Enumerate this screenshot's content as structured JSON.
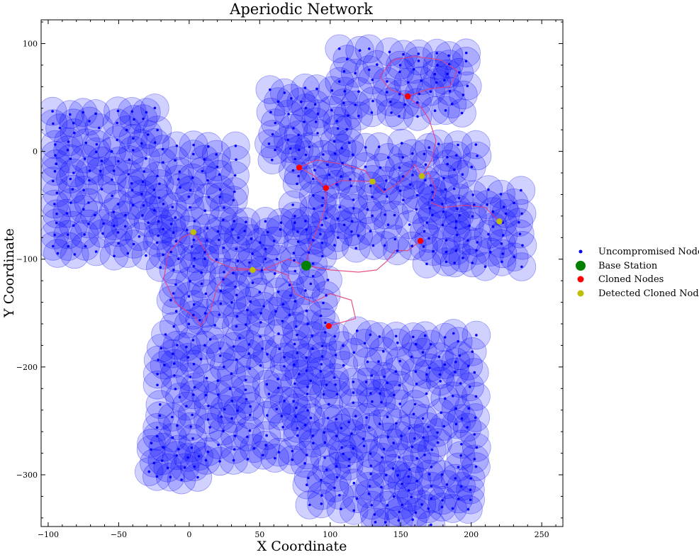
{
  "chart_data": {
    "type": "scatter",
    "title": "Aperiodic Network",
    "xlabel": "X Coordinate",
    "ylabel": "Y Coordinate",
    "xlim": [
      -105,
      265
    ],
    "ylim": [
      -348,
      122
    ],
    "xticks": [
      -100,
      -50,
      0,
      50,
      100,
      150,
      200,
      250
    ],
    "yticks": [
      100,
      0,
      -100,
      -200,
      -300
    ],
    "xtick_labels": [
      "−100",
      "−50",
      "0",
      "50",
      "100",
      "150",
      "200",
      "250"
    ],
    "ytick_labels": [
      "100",
      "0",
      "−100",
      "−200",
      "−300"
    ],
    "grid": false,
    "legend_position": "right",
    "coverage_radius": 10,
    "colors": {
      "uncompromised": "#0000ff",
      "coverage_fill": "#0000ff",
      "base_station": "#008000",
      "cloned": "#ff0000",
      "detected": "#bfbf00",
      "path": "#e0407a"
    },
    "series": [
      {
        "name": "Uncompromised Nodes",
        "marker": "dot"
      },
      {
        "name": "Base Station",
        "marker": "large-dot",
        "points": [
          [
            83,
            -106
          ]
        ]
      },
      {
        "name": "Cloned Nodes",
        "marker": "dot",
        "points": [
          [
            78,
            -15
          ],
          [
            97,
            -34
          ],
          [
            155,
            51
          ],
          [
            164,
            -83
          ],
          [
            99,
            -162
          ]
        ]
      },
      {
        "name": "Detected Cloned Nodes",
        "marker": "dot",
        "points": [
          [
            3,
            -75
          ],
          [
            45,
            -110
          ],
          [
            130,
            -28
          ],
          [
            165,
            -23
          ],
          [
            220,
            -65
          ]
        ]
      }
    ],
    "attack_paths": [
      [
        [
          83,
          -106
        ],
        [
          70,
          -100
        ],
        [
          52,
          -110
        ],
        [
          30,
          -108
        ],
        [
          15,
          -100
        ],
        [
          8,
          -85
        ],
        [
          3,
          -75
        ],
        [
          -5,
          -80
        ],
        [
          -15,
          -95
        ],
        [
          -18,
          -118
        ],
        [
          -10,
          -140
        ],
        [
          5,
          -155
        ],
        [
          8,
          -162
        ],
        [
          15,
          -148
        ],
        [
          20,
          -125
        ],
        [
          30,
          -110
        ],
        [
          45,
          -110
        ],
        [
          60,
          -110
        ],
        [
          70,
          -115
        ],
        [
          75,
          -132
        ],
        [
          88,
          -140
        ],
        [
          100,
          -132
        ],
        [
          115,
          -138
        ],
        [
          118,
          -155
        ],
        [
          99,
          -162
        ]
      ],
      [
        [
          83,
          -106
        ],
        [
          100,
          -110
        ],
        [
          120,
          -112
        ],
        [
          133,
          -110
        ],
        [
          140,
          -102
        ],
        [
          146,
          -92
        ],
        [
          155,
          -92
        ],
        [
          164,
          -83
        ]
      ],
      [
        [
          83,
          -106
        ],
        [
          85,
          -90
        ],
        [
          90,
          -75
        ],
        [
          95,
          -58
        ],
        [
          97,
          -48
        ],
        [
          97,
          -34
        ],
        [
          108,
          -27
        ],
        [
          130,
          -28
        ],
        [
          138,
          -38
        ],
        [
          150,
          -28
        ],
        [
          160,
          -12
        ],
        [
          165,
          -23
        ],
        [
          170,
          -20
        ],
        [
          175,
          -35
        ],
        [
          172,
          -48
        ],
        [
          180,
          -52
        ],
        [
          195,
          -50
        ],
        [
          210,
          -52
        ],
        [
          220,
          -65
        ]
      ],
      [
        [
          97,
          -34
        ],
        [
          88,
          -22
        ],
        [
          78,
          -15
        ],
        [
          90,
          -8
        ],
        [
          110,
          -12
        ],
        [
          125,
          -18
        ],
        [
          130,
          -28
        ]
      ],
      [
        [
          165,
          -23
        ],
        [
          172,
          -8
        ],
        [
          175,
          10
        ],
        [
          170,
          30
        ],
        [
          165,
          40
        ],
        [
          155,
          51
        ],
        [
          142,
          58
        ],
        [
          135,
          70
        ],
        [
          145,
          85
        ],
        [
          160,
          88
        ],
        [
          178,
          85
        ],
        [
          190,
          75
        ],
        [
          185,
          60
        ],
        [
          170,
          58
        ],
        [
          155,
          51
        ]
      ]
    ]
  }
}
